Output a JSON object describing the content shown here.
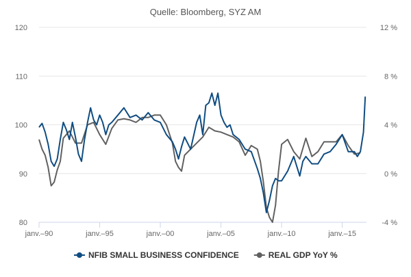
{
  "chart_data": {
    "type": "line",
    "title": "Quelle: Bloomberg, SYZ AM",
    "xlabel": "",
    "ylabel_left": "",
    "ylabel_right": "",
    "x_range": [
      1990,
      2017
    ],
    "x_ticks": [
      {
        "x": 1990,
        "label": "janv.–90"
      },
      {
        "x": 1995,
        "label": "janv.–95"
      },
      {
        "x": 2000,
        "label": "janv.–00"
      },
      {
        "x": 2005,
        "label": "janv.–05"
      },
      {
        "x": 2010,
        "label": "janv.–10"
      },
      {
        "x": 2015,
        "label": "janv.–15"
      }
    ],
    "y_left": {
      "min": 80,
      "max": 120,
      "ticks": [
        80,
        90,
        100,
        110,
        120
      ],
      "tick_labels": [
        "80",
        "90",
        "100",
        "110",
        "120"
      ]
    },
    "y_right": {
      "min": -4,
      "max": 12,
      "ticks": [
        -4,
        0,
        4,
        8,
        12
      ],
      "tick_labels": [
        "-4 %",
        "0 %",
        "4 %",
        "8 %",
        "12 %"
      ]
    },
    "grid": true,
    "legend_position": "bottom",
    "series": [
      {
        "name": "NFIB SMALL BUSINESS CONFIDENCE",
        "axis": "left",
        "color": "#0f4c81",
        "marker": "circle",
        "x": [
          1990.0,
          1990.25,
          1990.5,
          1990.75,
          1991.0,
          1991.25,
          1991.5,
          1991.75,
          1992.0,
          1992.25,
          1992.5,
          1992.75,
          1993.0,
          1993.25,
          1993.5,
          1993.75,
          1994.0,
          1994.25,
          1994.5,
          1994.75,
          1995.0,
          1995.25,
          1995.5,
          1995.75,
          1996.0,
          1996.5,
          1997.0,
          1997.5,
          1998.0,
          1998.5,
          1999.0,
          1999.5,
          2000.0,
          2000.5,
          2001.0,
          2001.25,
          2001.5,
          2001.75,
          2002.0,
          2002.5,
          2003.0,
          2003.25,
          2003.5,
          2003.75,
          2004.0,
          2004.25,
          2004.5,
          2004.75,
          2005.0,
          2005.25,
          2005.5,
          2005.75,
          2006.0,
          2006.5,
          2007.0,
          2007.5,
          2008.0,
          2008.25,
          2008.5,
          2008.75,
          2009.0,
          2009.25,
          2009.5,
          2009.75,
          2010.0,
          2010.5,
          2011.0,
          2011.25,
          2011.5,
          2011.75,
          2012.0,
          2012.5,
          2013.0,
          2013.5,
          2014.0,
          2014.5,
          2015.0,
          2015.5,
          2016.0,
          2016.25,
          2016.5,
          2016.75,
          2016.9
        ],
        "values": [
          99.5,
          100.3,
          98.5,
          96.0,
          92.5,
          91.5,
          93.0,
          97.0,
          100.5,
          99.0,
          97.0,
          100.5,
          97.5,
          94.0,
          92.5,
          97.0,
          100.5,
          103.5,
          101.0,
          100.0,
          102.0,
          100.5,
          98.0,
          100.0,
          100.5,
          102.0,
          103.5,
          101.5,
          102.0,
          101.0,
          102.5,
          101.0,
          100.5,
          98.0,
          96.5,
          95.0,
          93.0,
          95.5,
          97.5,
          95.0,
          100.5,
          102.0,
          98.0,
          104.0,
          104.5,
          106.5,
          104.0,
          106.5,
          102.0,
          100.5,
          99.5,
          100.0,
          98.0,
          97.0,
          95.0,
          94.5,
          91.0,
          89.0,
          86.0,
          82.0,
          84.5,
          87.5,
          89.0,
          88.5,
          88.5,
          90.5,
          93.5,
          91.5,
          89.5,
          92.5,
          93.5,
          92.0,
          92.0,
          94.0,
          94.5,
          96.0,
          98.0,
          94.5,
          94.5,
          93.5,
          94.5,
          98.5,
          105.8
        ]
      },
      {
        "name": "REAL GDP YoY %",
        "axis": "right",
        "color": "#606060",
        "marker": "circle",
        "x": [
          1990.0,
          1990.25,
          1990.5,
          1990.75,
          1991.0,
          1991.25,
          1991.5,
          1991.75,
          1992.0,
          1992.5,
          1993.0,
          1993.5,
          1994.0,
          1994.5,
          1995.0,
          1995.5,
          1996.0,
          1996.5,
          1997.0,
          1997.5,
          1998.0,
          1998.5,
          1999.0,
          1999.5,
          2000.0,
          2000.5,
          2001.0,
          2001.25,
          2001.5,
          2001.75,
          2002.0,
          2002.5,
          2003.0,
          2003.5,
          2004.0,
          2004.5,
          2005.0,
          2005.5,
          2006.0,
          2006.5,
          2007.0,
          2007.5,
          2008.0,
          2008.25,
          2008.5,
          2008.75,
          2009.0,
          2009.25,
          2009.5,
          2009.75,
          2010.0,
          2010.5,
          2011.0,
          2011.5,
          2012.0,
          2012.5,
          2013.0,
          2013.5,
          2014.0,
          2014.5,
          2015.0,
          2015.5,
          2016.0,
          2016.5
        ],
        "values": [
          2.8,
          2.0,
          1.5,
          0.5,
          -1.0,
          -0.7,
          0.3,
          1.0,
          2.9,
          3.5,
          2.5,
          2.5,
          4.0,
          4.2,
          3.2,
          2.4,
          3.7,
          4.4,
          4.5,
          4.4,
          4.2,
          4.6,
          4.6,
          4.8,
          4.8,
          4.0,
          2.5,
          1.0,
          0.5,
          0.2,
          1.5,
          2.0,
          2.5,
          3.0,
          3.8,
          3.5,
          3.4,
          3.2,
          3.0,
          2.6,
          1.5,
          2.3,
          2.0,
          1.0,
          -0.7,
          -2.8,
          -3.6,
          -4.0,
          -2.6,
          0.2,
          2.4,
          2.8,
          1.8,
          1.2,
          2.9,
          1.4,
          1.8,
          2.6,
          2.6,
          2.6,
          3.2,
          2.3,
          1.6,
          1.7
        ]
      }
    ]
  }
}
